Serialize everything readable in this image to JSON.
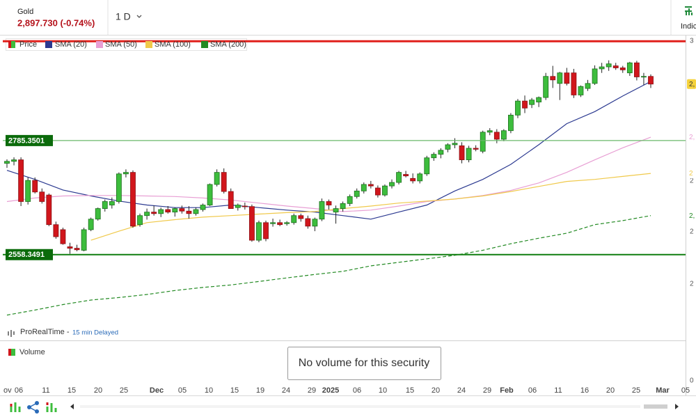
{
  "header": {
    "instrument": "Gold",
    "quote": "2,897.730 (-0.74%)",
    "interval": "1 D",
    "indicators": "Indic"
  },
  "chart_data": {
    "type": "candlestick",
    "price_name": "Price",
    "up_color": "#3dbd3d",
    "down_color": "#d1161c",
    "price_tag": "2,",
    "candles": {
      "open": [
        2740,
        2744,
        2747,
        2664,
        2706,
        2683,
        2677,
        2618,
        2608,
        2574,
        2571,
        2567,
        2608,
        2629,
        2650,
        2657,
        2664,
        2719,
        2722,
        2618,
        2636,
        2643,
        2640,
        2648,
        2643,
        2650,
        2645,
        2640,
        2648,
        2657,
        2698,
        2722,
        2684,
        2652,
        2655,
        2654,
        2587,
        2622,
        2620,
        2622,
        2620,
        2622,
        2636,
        2630,
        2615,
        2629,
        2664,
        2643,
        2650,
        2660,
        2674,
        2685,
        2698,
        2691,
        2677,
        2695,
        2702,
        2718,
        2710,
        2705,
        2719,
        2751,
        2758,
        2768,
        2777,
        2775,
        2747,
        2770,
        2764,
        2802,
        2802,
        2788,
        2805,
        2836,
        2864,
        2857,
        2862,
        2871,
        2913,
        2899,
        2920,
        2920,
        2876,
        2889,
        2899,
        2928,
        2932,
        2934,
        2930,
        2920,
        2940,
        2912,
        2913
      ],
      "high": [
        2748,
        2752,
        2752,
        2712,
        2712,
        2690,
        2680,
        2624,
        2612,
        2582,
        2578,
        2612,
        2632,
        2652,
        2668,
        2672,
        2722,
        2728,
        2726,
        2640,
        2650,
        2656,
        2652,
        2655,
        2652,
        2656,
        2655,
        2652,
        2660,
        2700,
        2728,
        2730,
        2690,
        2660,
        2662,
        2658,
        2626,
        2626,
        2630,
        2628,
        2625,
        2640,
        2640,
        2636,
        2632,
        2670,
        2668,
        2656,
        2664,
        2678,
        2690,
        2702,
        2705,
        2696,
        2698,
        2708,
        2725,
        2725,
        2720,
        2722,
        2755,
        2762,
        2770,
        2780,
        2790,
        2782,
        2775,
        2776,
        2805,
        2810,
        2808,
        2808,
        2840,
        2868,
        2875,
        2870,
        2873,
        2920,
        2934,
        2922,
        2930,
        2928,
        2895,
        2906,
        2935,
        2940,
        2945,
        2940,
        2934,
        2942,
        2944,
        2920,
        2917
      ],
      "low": [
        2731,
        2736,
        2655,
        2658,
        2680,
        2660,
        2615,
        2590,
        2578,
        2560,
        2565,
        2565,
        2605,
        2626,
        2644,
        2650,
        2660,
        2712,
        2612,
        2614,
        2628,
        2636,
        2633,
        2640,
        2634,
        2640,
        2630,
        2636,
        2644,
        2655,
        2694,
        2680,
        2650,
        2646,
        2648,
        2584,
        2583,
        2585,
        2614,
        2615,
        2616,
        2618,
        2624,
        2610,
        2605,
        2625,
        2648,
        2620,
        2644,
        2655,
        2670,
        2680,
        2690,
        2672,
        2674,
        2690,
        2698,
        2712,
        2700,
        2700,
        2715,
        2745,
        2750,
        2762,
        2770,
        2740,
        2742,
        2764,
        2760,
        2796,
        2780,
        2784,
        2800,
        2830,
        2840,
        2850,
        2852,
        2866,
        2890,
        2866,
        2895,
        2870,
        2872,
        2884,
        2896,
        2920,
        2924,
        2926,
        2920,
        2914,
        2905,
        2896,
        2890
      ],
      "close": [
        2744,
        2747,
        2664,
        2706,
        2683,
        2664,
        2618,
        2594,
        2580,
        2571,
        2568,
        2608,
        2629,
        2650,
        2664,
        2664,
        2719,
        2722,
        2615,
        2636,
        2643,
        2640,
        2648,
        2643,
        2650,
        2645,
        2640,
        2648,
        2657,
        2698,
        2722,
        2684,
        2650,
        2657,
        2654,
        2587,
        2622,
        2590,
        2622,
        2618,
        2622,
        2636,
        2630,
        2615,
        2629,
        2664,
        2657,
        2650,
        2660,
        2674,
        2685,
        2698,
        2695,
        2677,
        2695,
        2702,
        2722,
        2715,
        2705,
        2719,
        2751,
        2758,
        2766,
        2777,
        2780,
        2747,
        2770,
        2768,
        2802,
        2805,
        2788,
        2805,
        2836,
        2864,
        2850,
        2866,
        2871,
        2913,
        2906,
        2920,
        2899,
        2876,
        2893,
        2899,
        2928,
        2932,
        2938,
        2930,
        2926,
        2940,
        2912,
        2913,
        2897.73
      ]
    },
    "series": [
      {
        "name": "SMA (20)",
        "color": "#2b3990",
        "values": [
          2726,
          2708,
          2687,
          2675,
          2665,
          2657,
          2652,
          2652,
          2657,
          2652,
          2647,
          2643,
          2636,
          2629,
          2643,
          2657,
          2685,
          2708,
          2738,
          2777,
          2819,
          2843,
          2874,
          2903
        ]
      },
      {
        "name": "SMA (50)",
        "color": "#e89fd4",
        "tag": "2,",
        "values": [
          2664,
          2671,
          2675,
          2676,
          2676,
          2675,
          2674,
          2671,
          2667,
          2661,
          2655,
          2650,
          2644,
          2647,
          2655,
          2664,
          2669,
          2676,
          2686,
          2701,
          2722,
          2747,
          2771,
          2792
        ]
      },
      {
        "name": "SMA (100)",
        "color": "#f0c94a",
        "tag": "2",
        "values": [
          null,
          null,
          null,
          2587,
          2605,
          2622,
          2628,
          2633,
          2636,
          2639,
          2642,
          2644,
          2650,
          2655,
          2661,
          2665,
          2669,
          2675,
          2684,
          2694,
          2704,
          2708,
          2714,
          2720
        ]
      },
      {
        "name": "SMA (200)",
        "color": "#238a23",
        "dashed": true,
        "tag": "2,",
        "values": [
          2438,
          2448,
          2459,
          2468,
          2473,
          2479,
          2487,
          2493,
          2498,
          2505,
          2512,
          2519,
          2525,
          2536,
          2543,
          2550,
          2557,
          2567,
          2580,
          2591,
          2601,
          2618,
          2626,
          2636
        ]
      }
    ],
    "levels": [
      {
        "value": 2983,
        "color": "#e0201b"
      },
      {
        "value": 2785.3501,
        "color": "#6ab86a",
        "label_color": "#0b6b0b"
      },
      {
        "value": 2558.3491,
        "color": "#0e7d0e",
        "label_color": "#0b6b0b"
      }
    ],
    "ylim": [
      2389,
      2993
    ],
    "axis_labels": [
      "3",
      "2",
      "2",
      "2"
    ],
    "x_labels": [
      "ov",
      "06",
      "11",
      "15",
      "20",
      "25",
      "Dec",
      "05",
      "10",
      "15",
      "19",
      "24",
      "29",
      "2025",
      "06",
      "10",
      "15",
      "20",
      "24",
      "29",
      "Feb",
      "06",
      "11",
      "16",
      "20",
      "25",
      "Mar",
      "05"
    ],
    "source": "ProRealTime -",
    "delay": "15 min Delayed"
  },
  "volume": {
    "title": "Volume",
    "message": "No volume for this security",
    "axis_label": "0"
  }
}
